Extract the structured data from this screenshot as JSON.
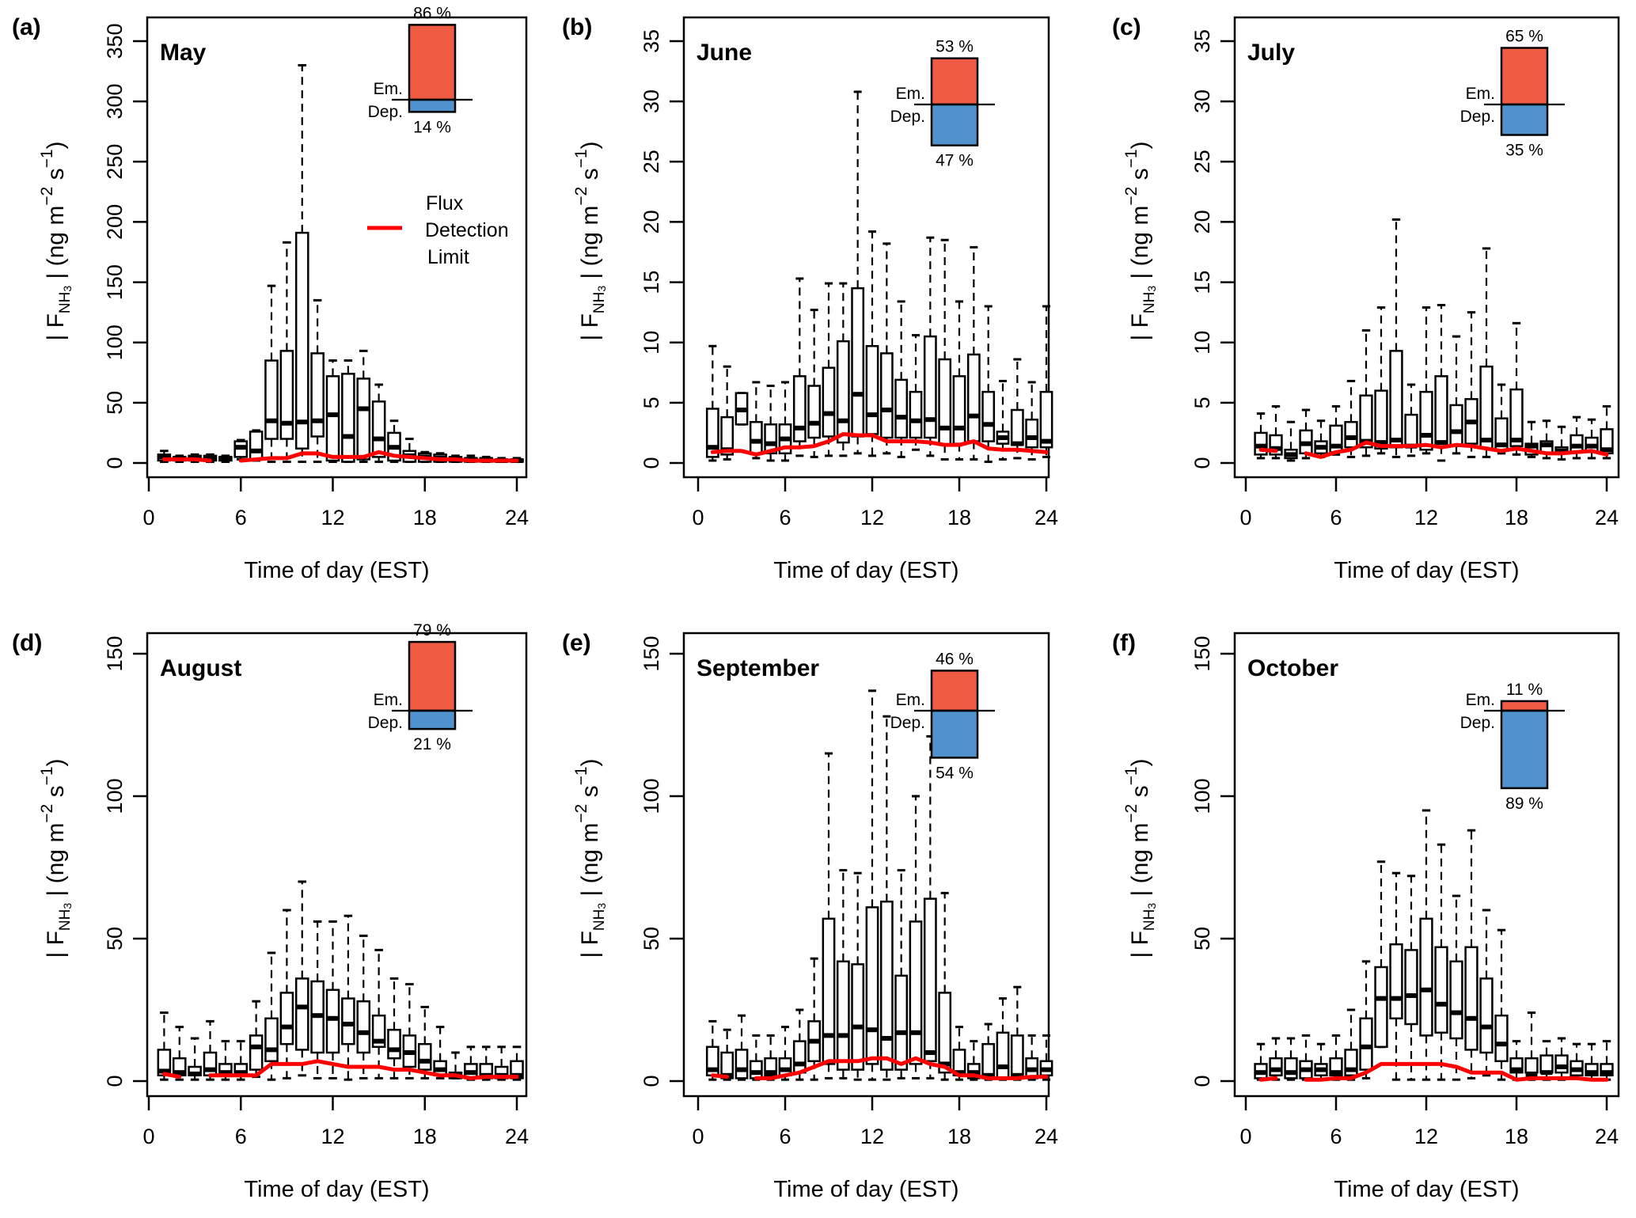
{
  "figure": {
    "xlabel": "Time of day (EST)",
    "ylabel_prefix": "| F",
    "ylabel_sub": "NH",
    "ylabel_sub2": "3",
    "ylabel_unit_a": " | (ng  m",
    "ylabel_exp1": "−2",
    "ylabel_unit_b": "  s",
    "ylabel_exp2": "−1",
    "ylabel_close": ")",
    "legend": {
      "lines": [
        "Flux",
        "Detection",
        "Limit"
      ],
      "color": "#ff0000"
    },
    "em_label": "Em.",
    "dep_label": "Dep.",
    "colors": {
      "emission": "#ef5b43",
      "deposition": "#4f92cd",
      "fdl": "#ff0000"
    }
  },
  "chart_data": [
    {
      "type": "box",
      "panel": "(a)",
      "title": "May",
      "xlabel": "Time of day (EST)",
      "ylabel": "|F_NH3| (ng m^-2 s^-1)",
      "xlim": [
        0,
        24
      ],
      "ylim": [
        0,
        350
      ],
      "xticks": [
        0,
        6,
        12,
        18,
        24
      ],
      "yticks": [
        0,
        50,
        100,
        150,
        200,
        250,
        300,
        350
      ],
      "emission_pct": 86,
      "deposition_pct": 14,
      "emission_label": "86 %",
      "deposition_label": "14 %",
      "hours": [
        1,
        2,
        3,
        4,
        5,
        6,
        7,
        8,
        9,
        10,
        11,
        12,
        13,
        14,
        15,
        16,
        17,
        18,
        19,
        20,
        21,
        22,
        23,
        24
      ],
      "whisker_low": [
        1,
        1,
        1,
        1,
        1,
        3,
        2,
        1,
        1,
        1,
        1,
        1,
        1,
        1,
        1,
        1,
        1,
        1,
        1,
        1,
        1,
        1,
        1,
        1
      ],
      "q1": [
        2,
        2,
        2,
        2,
        2,
        5,
        3,
        20,
        20,
        12,
        22,
        2,
        1,
        3,
        5,
        2,
        1,
        1,
        1,
        1,
        1,
        1,
        1,
        1
      ],
      "median": [
        5,
        4,
        4,
        4,
        4,
        13,
        10,
        35,
        33,
        34,
        35,
        40,
        22,
        45,
        20,
        13,
        6,
        5,
        4,
        3,
        3,
        3,
        2,
        2
      ],
      "q3": [
        7,
        5,
        6,
        6,
        5,
        18,
        26,
        85,
        93,
        191,
        91,
        72,
        74,
        70,
        51,
        25,
        10,
        8,
        7,
        5,
        4,
        4,
        3,
        3
      ],
      "whisker_high": [
        10,
        6,
        7,
        7,
        6,
        19,
        27,
        147,
        183,
        330,
        135,
        85,
        85,
        93,
        65,
        35,
        20,
        9,
        8,
        6,
        6,
        5,
        4,
        4
      ],
      "fdl": [
        3,
        3,
        3,
        2,
        null,
        2,
        3,
        4,
        4,
        8,
        8,
        5,
        5,
        5,
        9,
        6,
        5,
        4,
        3,
        3,
        2,
        2,
        2,
        2
      ]
    },
    {
      "type": "box",
      "panel": "(b)",
      "title": "June",
      "xlabel": "Time of day (EST)",
      "ylabel": "|F_NH3| (ng m^-2 s^-1)",
      "xlim": [
        0,
        24
      ],
      "ylim": [
        0,
        35
      ],
      "xticks": [
        0,
        6,
        12,
        18,
        24
      ],
      "yticks": [
        0,
        5,
        10,
        15,
        20,
        25,
        30,
        35
      ],
      "emission_pct": 53,
      "deposition_pct": 47,
      "emission_label": "53 %",
      "deposition_label": "47 %",
      "hours": [
        1,
        2,
        3,
        4,
        5,
        6,
        7,
        8,
        9,
        10,
        11,
        12,
        13,
        14,
        15,
        16,
        17,
        18,
        19,
        20,
        21,
        22,
        23,
        24
      ],
      "whisker_low": [
        0.2,
        0.3,
        3.2,
        0.4,
        0.2,
        0.2,
        0.6,
        0.5,
        0.6,
        0.6,
        0.8,
        0.6,
        0.8,
        0.5,
        1.1,
        0.6,
        0.3,
        0.3,
        0.3,
        0.1,
        0.3,
        0.4,
        0.3,
        0.5
      ],
      "q1": [
        0.5,
        0.7,
        3.2,
        0.8,
        0.8,
        0.8,
        1.8,
        2.1,
        2.2,
        1.7,
        2.2,
        2.4,
        2.1,
        2.1,
        2.1,
        2.1,
        1.5,
        1.6,
        1.8,
        1.8,
        1.6,
        1.5,
        1.3,
        1.3
      ],
      "median": [
        1.3,
        1.1,
        4.4,
        1.8,
        1.6,
        2.0,
        2.9,
        3.3,
        4.1,
        3.5,
        5.7,
        4.0,
        4.4,
        3.8,
        3.5,
        3.6,
        2.9,
        2.9,
        3.9,
        3.2,
        2.1,
        1.6,
        2.1,
        1.8
      ],
      "q3": [
        4.5,
        3.8,
        5.8,
        3.4,
        3.2,
        3.2,
        7.2,
        6.4,
        7.9,
        10.1,
        14.5,
        9.7,
        9.1,
        6.9,
        5.9,
        10.5,
        8.6,
        7.2,
        9.0,
        5.9,
        2.6,
        4.4,
        3.6,
        5.9
      ],
      "whisker_high": [
        9.7,
        8.0,
        5.8,
        6.7,
        6.4,
        6.7,
        15.3,
        12.7,
        14.9,
        14.9,
        30.8,
        19.2,
        18.2,
        13.4,
        10.6,
        18.7,
        18.5,
        13.4,
        17.9,
        13.0,
        6.8,
        8.6,
        6.7,
        13.0
      ],
      "fdl": [
        0.9,
        1.0,
        1.0,
        0.7,
        1.0,
        1.3,
        1.3,
        1.4,
        1.8,
        2.4,
        2.3,
        2.3,
        1.8,
        1.8,
        1.8,
        1.7,
        1.5,
        1.5,
        1.8,
        1.2,
        1.1,
        1.1,
        1.0,
        0.9
      ]
    },
    {
      "type": "box",
      "panel": "(c)",
      "title": "July",
      "xlabel": "Time of day (EST)",
      "ylabel": "|F_NH3| (ng m^-2 s^-1)",
      "xlim": [
        0,
        24
      ],
      "ylim": [
        0,
        35
      ],
      "xticks": [
        0,
        6,
        12,
        18,
        24
      ],
      "yticks": [
        0,
        5,
        10,
        15,
        20,
        25,
        30,
        35
      ],
      "emission_pct": 65,
      "deposition_pct": 35,
      "emission_label": "65 %",
      "deposition_label": "35 %",
      "hours": [
        1,
        2,
        3,
        4,
        5,
        6,
        7,
        8,
        9,
        10,
        11,
        12,
        13,
        14,
        15,
        16,
        17,
        18,
        19,
        20,
        21,
        22,
        23,
        24
      ],
      "whisker_low": [
        0.4,
        0.4,
        0.2,
        0.4,
        0.5,
        0.7,
        0.5,
        0.6,
        0.8,
        0.5,
        0.6,
        0.8,
        0.2,
        0.8,
        0.5,
        0.5,
        0.8,
        0.7,
        0.5,
        0.4,
        0.3,
        0.4,
        0.4,
        0.4
      ],
      "q1": [
        0.7,
        0.7,
        0.4,
        0.8,
        0.8,
        0.9,
        1.3,
        1.3,
        1.2,
        1.3,
        1.5,
        1.1,
        1.4,
        1.4,
        1.6,
        1.2,
        1.0,
        1.4,
        0.7,
        0.8,
        0.8,
        0.9,
        0.9,
        0.8
      ],
      "median": [
        1.4,
        1.2,
        0.7,
        1.6,
        1.3,
        1.4,
        2.1,
        1.8,
        1.7,
        1.9,
        1.4,
        2.3,
        1.7,
        2.6,
        3.4,
        1.9,
        1.5,
        1.9,
        1.4,
        1.5,
        1.0,
        1.4,
        1.4,
        1.1
      ],
      "q3": [
        2.5,
        2.3,
        1.1,
        2.7,
        1.8,
        3.1,
        3.4,
        5.6,
        6.0,
        9.3,
        4.0,
        5.9,
        7.2,
        4.8,
        5.3,
        8.0,
        3.7,
        6.1,
        1.6,
        1.8,
        1.3,
        2.3,
        2.1,
        2.8
      ],
      "whisker_high": [
        4.1,
        4.7,
        3.4,
        4.4,
        3.5,
        4.7,
        6.8,
        11.0,
        12.9,
        20.2,
        6.5,
        12.9,
        13.1,
        10.5,
        12.5,
        17.8,
        6.5,
        11.6,
        3.4,
        3.5,
        3.0,
        3.8,
        3.6,
        4.7
      ],
      "fdl": [
        1.1,
        1.0,
        null,
        0.8,
        0.5,
        0.9,
        1.1,
        1.7,
        1.4,
        1.4,
        1.4,
        1.5,
        1.3,
        1.5,
        1.4,
        1.2,
        1.0,
        1.2,
        1.0,
        0.8,
        0.8,
        0.9,
        1.0,
        0.7
      ]
    },
    {
      "type": "box",
      "panel": "(d)",
      "title": "August",
      "xlabel": "Time of day (EST)",
      "ylabel": "|F_NH3| (ng m^-2 s^-1)",
      "xlim": [
        0,
        24
      ],
      "ylim": [
        0,
        150
      ],
      "xticks": [
        0,
        6,
        12,
        18,
        24
      ],
      "yticks": [
        0,
        50,
        100,
        150
      ],
      "emission_pct": 79,
      "deposition_pct": 21,
      "emission_label": "79 %",
      "deposition_label": "21 %",
      "hours": [
        1,
        2,
        3,
        4,
        5,
        6,
        7,
        8,
        9,
        10,
        11,
        12,
        13,
        14,
        15,
        16,
        17,
        18,
        19,
        20,
        21,
        22,
        23,
        24
      ],
      "whisker_low": [
        0.5,
        0.5,
        0.5,
        0.5,
        0.5,
        0.5,
        1.5,
        0.5,
        1,
        2,
        1,
        1,
        0.5,
        1,
        1,
        1,
        1,
        1,
        1,
        1,
        0.5,
        0.5,
        0.5,
        0.5
      ],
      "q1": [
        2,
        2,
        2,
        2,
        2,
        2,
        4,
        7,
        13,
        11,
        10,
        10,
        13,
        10,
        12,
        8,
        5,
        4,
        2,
        1,
        1,
        1,
        1,
        1
      ],
      "median": [
        3.5,
        3,
        2.5,
        4,
        3,
        3,
        12,
        11,
        19,
        26,
        23,
        22,
        20,
        17,
        14,
        11,
        10,
        7,
        4,
        2,
        3,
        2,
        2,
        2
      ],
      "q3": [
        11,
        8,
        5,
        10,
        6,
        6,
        16,
        22,
        31,
        36,
        35,
        32,
        29,
        28,
        23,
        18,
        16,
        13,
        7,
        3,
        6,
        6,
        5,
        7
      ],
      "whisker_high": [
        24,
        19,
        15,
        21,
        14,
        14,
        28,
        45,
        60,
        70,
        56,
        56,
        58,
        51,
        46,
        36,
        34,
        26,
        19,
        10,
        12,
        12,
        12,
        12
      ],
      "fdl": [
        2.5,
        1.5,
        null,
        2,
        2,
        2,
        2,
        6,
        6,
        6,
        7,
        6,
        5,
        5,
        5,
        4,
        4,
        3,
        2,
        2,
        1,
        1.5,
        1.5,
        1.5
      ]
    },
    {
      "type": "box",
      "panel": "(e)",
      "title": "September",
      "xlabel": "Time of day (EST)",
      "ylabel": "|F_NH3| (ng m^-2 s^-1)",
      "xlim": [
        0,
        24
      ],
      "ylim": [
        0,
        150
      ],
      "xticks": [
        0,
        6,
        12,
        18,
        24
      ],
      "yticks": [
        0,
        50,
        100,
        150
      ],
      "emission_pct": 46,
      "deposition_pct": 54,
      "emission_label": "46 %",
      "deposition_label": "54 %",
      "hours": [
        1,
        2,
        3,
        4,
        5,
        6,
        7,
        8,
        9,
        10,
        11,
        12,
        13,
        14,
        15,
        16,
        17,
        18,
        19,
        20,
        21,
        22,
        23,
        24
      ],
      "whisker_low": [
        0.5,
        0.5,
        0.5,
        0.5,
        0.5,
        0.5,
        0.5,
        0.5,
        1,
        1,
        0.5,
        0.5,
        0.5,
        1,
        1,
        1,
        0.5,
        0.5,
        0.5,
        0.5,
        0.5,
        0.5,
        0.5,
        0.5
      ],
      "q1": [
        2,
        1,
        1,
        1,
        2,
        2,
        3,
        7,
        6,
        4,
        4,
        6,
        4,
        4,
        6,
        7,
        3,
        2,
        1,
        1,
        1,
        1,
        1,
        2
      ],
      "median": [
        4,
        2,
        4,
        3,
        3,
        4,
        6,
        14,
        16,
        16,
        19,
        18,
        15,
        17,
        17,
        10,
        6,
        3,
        3,
        2,
        5,
        2,
        4,
        4
      ],
      "q3": [
        12,
        10,
        11,
        7,
        8,
        8,
        14,
        21,
        57,
        42,
        41,
        61,
        63,
        37,
        56,
        64,
        31,
        11,
        6,
        13,
        17,
        16,
        8,
        7
      ],
      "whisker_high": [
        21,
        18,
        23,
        16,
        16,
        19,
        25,
        43,
        115,
        74,
        73,
        137,
        128,
        74,
        100,
        121,
        66,
        19,
        14,
        20,
        29,
        33,
        16,
        16
      ],
      "fdl": [
        2,
        1.5,
        null,
        1,
        1,
        2,
        3,
        5,
        7,
        7,
        7,
        8,
        8,
        6,
        8,
        6,
        5,
        2,
        2,
        1,
        1,
        1,
        1.5,
        1.5
      ]
    },
    {
      "type": "box",
      "panel": "(f)",
      "title": "October",
      "xlabel": "Time of day (EST)",
      "ylabel": "|F_NH3| (ng m^-2 s^-1)",
      "xlim": [
        0,
        24
      ],
      "ylim": [
        0,
        150
      ],
      "xticks": [
        0,
        6,
        12,
        18,
        24
      ],
      "yticks": [
        0,
        50,
        100,
        150
      ],
      "emission_pct": 11,
      "deposition_pct": 89,
      "emission_label": "11 %",
      "deposition_label": "89 %",
      "hours": [
        1,
        2,
        3,
        4,
        5,
        6,
        7,
        8,
        9,
        10,
        11,
        12,
        13,
        14,
        15,
        16,
        17,
        18,
        19,
        20,
        21,
        22,
        23,
        24
      ],
      "whisker_low": [
        0.5,
        0.5,
        0.5,
        0.5,
        0.5,
        0.5,
        0.5,
        1,
        12,
        0.5,
        0.5,
        0.5,
        0.5,
        0.5,
        1,
        2,
        0.5,
        0.5,
        0.5,
        0.5,
        0.5,
        1,
        0.5,
        0.5
      ],
      "q1": [
        1,
        2,
        1,
        1,
        2,
        2,
        2,
        4,
        12,
        22,
        20,
        16,
        17,
        15,
        11,
        10,
        7,
        3,
        3,
        3,
        3,
        2,
        2,
        2
      ],
      "median": [
        3,
        4,
        3,
        4,
        4,
        3,
        4,
        12,
        29,
        29,
        30,
        32,
        27,
        24,
        22,
        19,
        13,
        4,
        2,
        3,
        5,
        4,
        3,
        3
      ],
      "q3": [
        6,
        8,
        8,
        7,
        6,
        8,
        11,
        22,
        40,
        48,
        46,
        57,
        47,
        42,
        47,
        36,
        23,
        8,
        8,
        9,
        9,
        7,
        6,
        6
      ],
      "whisker_high": [
        13,
        15,
        15,
        16,
        13,
        16,
        25,
        42,
        77,
        73,
        72,
        95,
        83,
        65,
        88,
        60,
        53,
        14,
        24,
        14,
        15,
        13,
        13,
        14
      ],
      "fdl": [
        0.5,
        1,
        null,
        0.5,
        0.5,
        1,
        1,
        3,
        6,
        6,
        6,
        6,
        6,
        5,
        3,
        3,
        3,
        0.5,
        1,
        1,
        1,
        1,
        0.5,
        0.5
      ]
    }
  ]
}
